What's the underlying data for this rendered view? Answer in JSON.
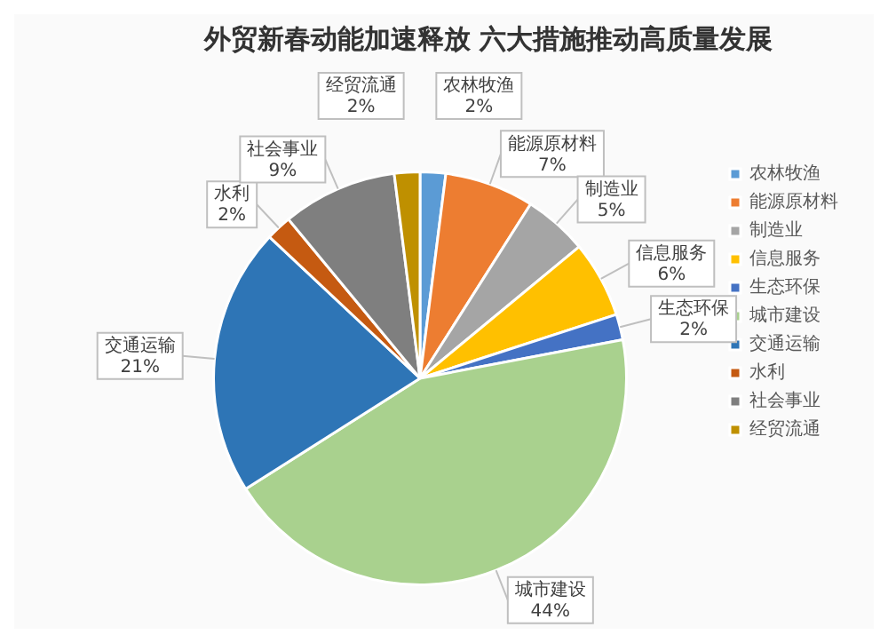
{
  "chart_data": {
    "type": "pie",
    "title": "外贸新春动能加速释放 六大措施推动高质量发展",
    "categories": [
      "农林牧渔",
      "能源原材料",
      "制造业",
      "信息服务",
      "生态环保",
      "城市建设",
      "交通运输",
      "水利",
      "社会事业",
      "经贸流通"
    ],
    "values": [
      2,
      7,
      5,
      6,
      2,
      44,
      21,
      2,
      9,
      2
    ],
    "value_labels": [
      "2%",
      "7%",
      "5%",
      "6%",
      "2%",
      "44%",
      "21%",
      "2%",
      "9%",
      "2%"
    ],
    "colors": [
      "#5b9bd5",
      "#ed7d31",
      "#a5a5a5",
      "#ffc000",
      "#4472c4",
      "#a9d18e",
      "#2e75b6",
      "#c55a11",
      "#7f7f7f",
      "#bf9000"
    ],
    "legend": "right"
  }
}
